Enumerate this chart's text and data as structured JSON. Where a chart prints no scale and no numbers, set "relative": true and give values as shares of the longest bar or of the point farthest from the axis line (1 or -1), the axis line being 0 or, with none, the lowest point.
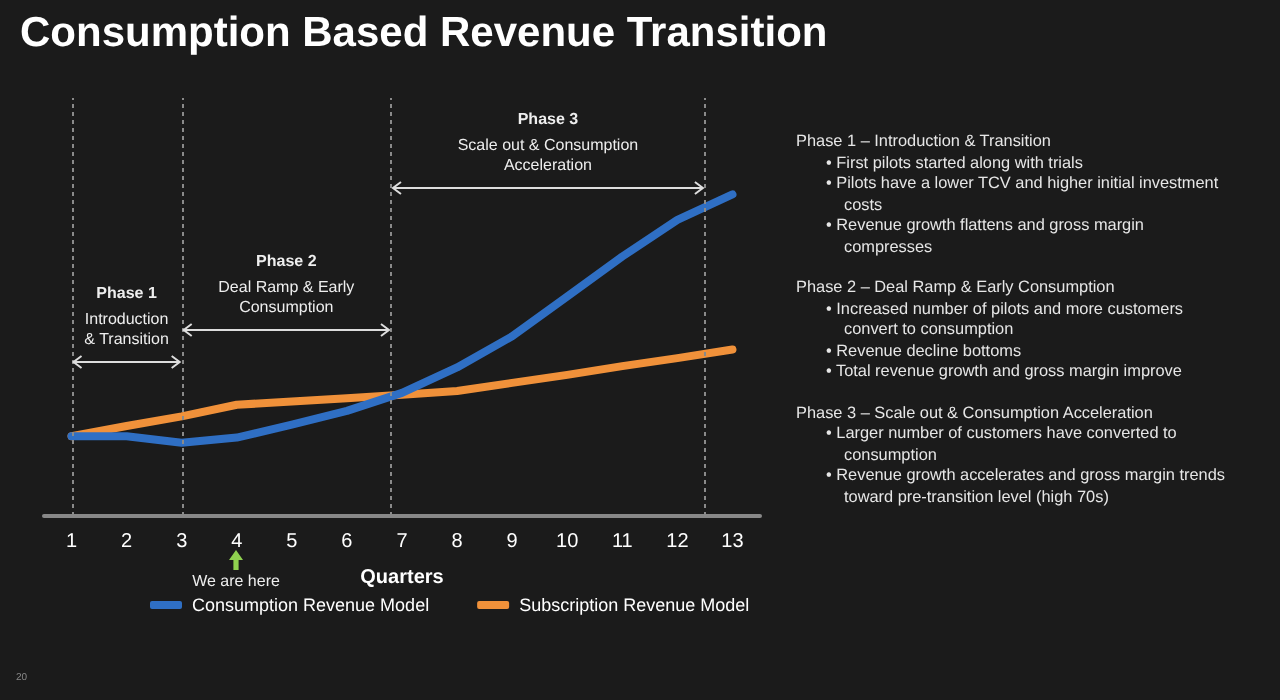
{
  "chart_data": {
    "type": "line",
    "title": "Consumption Based Revenue Transition",
    "xlabel": "Quarters",
    "x": [
      1,
      2,
      3,
      4,
      5,
      6,
      7,
      8,
      9,
      10,
      11,
      12,
      13
    ],
    "xlim": [
      0.5,
      13.5
    ],
    "xticks": [
      1,
      2,
      3,
      4,
      5,
      6,
      7,
      8,
      9,
      10,
      11,
      12,
      13
    ],
    "relative": true,
    "legend": "bottom",
    "marker": "none",
    "grid": false,
    "series": [
      {
        "name": "Consumption Revenue Model",
        "color": "#2f6fc4",
        "values": [
          0.248,
          0.248,
          0.228,
          0.244,
          0.284,
          0.327,
          0.383,
          0.462,
          0.559,
          0.683,
          0.807,
          0.921,
          1
        ]
      },
      {
        "name": "Subscription Revenue Model",
        "color": "#f0913a",
        "values": [
          0.248,
          0.28,
          0.31,
          0.346,
          0.356,
          0.366,
          0.377,
          0.389,
          0.414,
          0.439,
          0.466,
          0.491,
          0.518
        ]
      }
    ],
    "ref_lines": [
      {
        "axis": "x",
        "value": 1,
        "label": null,
        "color": "#8a8a8a",
        "line_style": "dotted"
      },
      {
        "axis": "x",
        "value": 3,
        "label": null,
        "color": "#8a8a8a",
        "line_style": "dotted"
      },
      {
        "axis": "x",
        "value": 6.8,
        "label": null,
        "color": "#8a8a8a",
        "line_style": "dotted"
      },
      {
        "axis": "x",
        "value": 12.5,
        "label": null,
        "color": "#8a8a8a",
        "line_style": "dotted"
      }
    ],
    "annotations": [
      "Phase 1\nIntroduction\n& Transition",
      "Phase 2\nDeal Ramp & Early\nConsumption",
      "Phase 3\nScale out & Consumption\nAcceleration",
      "We are here",
      "Phase 1 – Introduction & Transition\n• First pilots started along with trials\n• Pilots have a lower TCV and higher initial investment costs\n• Revenue growth flattens and gross margin compresses\n\nPhase 2 – Deal Ramp & Early Consumption\n• Increased number of pilots and more customers convert to consumption\n• Revenue decline bottoms\n• Total revenue growth and gross margin improve\n\nPhase 3 – Scale out & Consumption Acceleration\n• Larger number of customers have converted to consumption\n• Revenue growth accelerates and gross margin trends toward pre-transition level (high 70s)",
      "20"
    ]
  }
}
